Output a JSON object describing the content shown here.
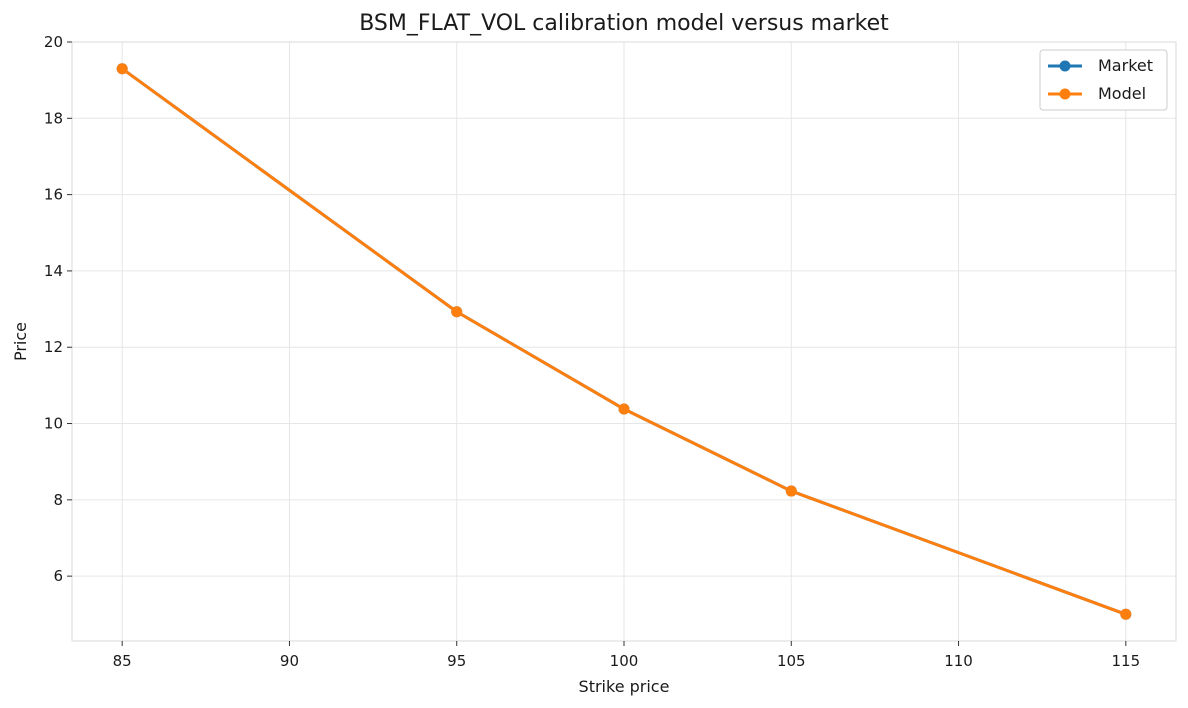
{
  "chart_data": {
    "type": "line",
    "title": "BSM_FLAT_VOL calibration model versus market",
    "xlabel": "Strike price",
    "ylabel": "Price",
    "xlim": [
      83.5,
      116.5
    ],
    "ylim": [
      4.3,
      20
    ],
    "xticks": [
      "85",
      "90",
      "95",
      "100",
      "105",
      "110",
      "115"
    ],
    "yticks": [
      "6",
      "8",
      "10",
      "12",
      "14",
      "16",
      "18",
      "20"
    ],
    "grid": true,
    "legend_position": "top-right",
    "x": [
      85,
      95,
      100,
      105,
      115
    ],
    "series": [
      {
        "name": "Market",
        "color": "#1f77b4",
        "values": [
          19.3,
          12.93,
          10.38,
          8.23,
          5.0
        ]
      },
      {
        "name": "Model",
        "color": "#ff7f0e",
        "values": [
          19.3,
          12.93,
          10.38,
          8.23,
          5.0
        ]
      }
    ]
  }
}
